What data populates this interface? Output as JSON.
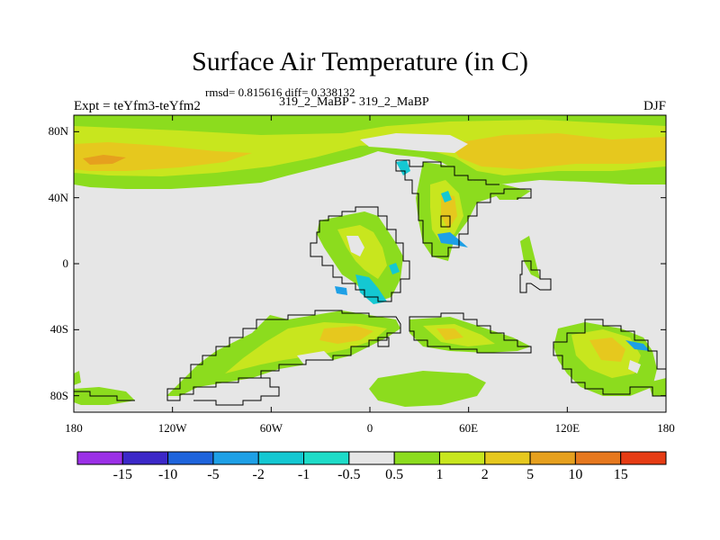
{
  "title": "Surface Air Temperature (in C)",
  "subtitle": "rmsd= 0.815616 diff= 0.338132",
  "left_header": "Expt = teYfm3-teYfm2",
  "center_header": "319_2_MaBP - 319_2_MaBP",
  "right_header": "DJF",
  "map": {
    "projection": "cylindrical-equidistant",
    "lon_range": [
      -180,
      180
    ],
    "lat_range": [
      -90,
      90
    ],
    "background_color": "#e6e6e6",
    "coastline_color": "#000000",
    "lat_ticks": [
      {
        "value": 80,
        "label": "80N"
      },
      {
        "value": 40,
        "label": "40N"
      },
      {
        "value": 0,
        "label": "0"
      },
      {
        "value": -40,
        "label": "40S"
      },
      {
        "value": -80,
        "label": "80S"
      }
    ],
    "lon_ticks": [
      {
        "value": -180,
        "label": "180"
      },
      {
        "value": -120,
        "label": "120W"
      },
      {
        "value": -60,
        "label": "60W"
      },
      {
        "value": 0,
        "label": "0"
      },
      {
        "value": 60,
        "label": "60E"
      },
      {
        "value": 120,
        "label": "120E"
      },
      {
        "value": 180,
        "label": "180"
      }
    ]
  },
  "colorbar": {
    "colors": [
      "#9b30e6",
      "#3c28c8",
      "#1e64dc",
      "#1ea0e6",
      "#14c8d2",
      "#1edcc8",
      "#e6e6e6",
      "#8cdc1e",
      "#c8e61e",
      "#e6c81e",
      "#e6a01e",
      "#e6781e",
      "#e63c14"
    ],
    "labels": [
      "-15",
      "-10",
      "-5",
      "-2",
      "-1",
      "-0.5",
      "0.5",
      "1",
      "2",
      "5",
      "10",
      "15"
    ]
  }
}
